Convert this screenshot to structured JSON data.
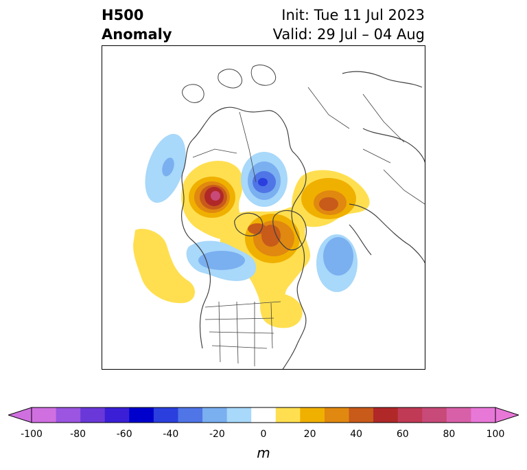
{
  "title": {
    "line1": "H500",
    "line2": "Anomaly",
    "init": "Init: Tue 11 Jul 2023",
    "valid": "Valid: 29 Jul – 04 Aug"
  },
  "colorbar": {
    "units": "m",
    "ticks": [
      "-100",
      "-80",
      "-60",
      "-40",
      "-20",
      "0",
      "20",
      "40",
      "60",
      "80",
      "100"
    ],
    "levels": [
      -100,
      -90,
      -80,
      -70,
      -60,
      -50,
      -40,
      -30,
      -20,
      -10,
      10,
      20,
      30,
      40,
      50,
      60,
      70,
      80,
      90,
      100
    ],
    "colors": [
      "#d070e0",
      "#9b55e0",
      "#6a38d8",
      "#3a1fd6",
      "#0000cc",
      "#2a3fdd",
      "#4f75e6",
      "#7aaff0",
      "#a8d8fa",
      "#ffffff",
      "#ffdf50",
      "#f0b000",
      "#e08810",
      "#c85a1a",
      "#b02828",
      "#c03a55",
      "#c84a78",
      "#d860a8",
      "#e878d8"
    ],
    "under_color": "#d070e0",
    "over_color": "#e878d8"
  },
  "map": {
    "anomalies": [
      {
        "name": "alaska-ridge",
        "sign": "positive",
        "peak_m": 70
      },
      {
        "name": "central-arctic-trough",
        "sign": "negative",
        "peak_m": -50
      },
      {
        "name": "baffin-greenland-ridge",
        "sign": "positive",
        "peak_m": 50
      },
      {
        "name": "barents-ridge",
        "sign": "positive",
        "peak_m": 50
      },
      {
        "name": "western-canada-trough",
        "sign": "negative",
        "peak_m": -30
      },
      {
        "name": "north-atlantic-trough",
        "sign": "negative",
        "peak_m": -30
      },
      {
        "name": "north-pacific-ridge",
        "sign": "positive",
        "peak_m": 10
      },
      {
        "name": "eastern-us-ridge",
        "sign": "positive",
        "peak_m": 10
      },
      {
        "name": "northwest-pacific-trough",
        "sign": "negative",
        "peak_m": -20
      }
    ]
  }
}
